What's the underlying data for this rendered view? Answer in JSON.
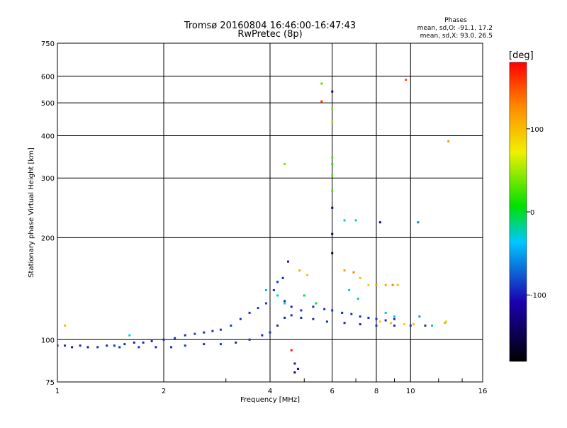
{
  "chart_data": {
    "type": "scatter",
    "title": "Tromsø 20160804 16:46:00-16:47:43",
    "subtitle": "RwPretec (8p)",
    "xlabel": "Frequency [MHz]",
    "ylabel": "Stationary phase Virtual Height [km]",
    "x_scale": "log",
    "y_scale": "log",
    "xlim": [
      1,
      16
    ],
    "ylim": [
      75,
      750
    ],
    "x_ticks": [
      1,
      2,
      4,
      6,
      8,
      10,
      16
    ],
    "y_ticks": [
      75,
      100,
      200,
      300,
      400,
      500,
      600,
      750
    ],
    "grid": true,
    "phases_label": "Phases",
    "phase_stats": [
      "mean, sd,O: -91.1, 17.2",
      "mean, sd,X:  93.0, 26.5"
    ],
    "colorbar": {
      "label": "[deg]",
      "range": [
        -180,
        180
      ],
      "ticks": [
        -100,
        0,
        100
      ]
    },
    "series": [
      {
        "values": [
          [
            1.0,
            96,
            -95
          ],
          [
            1.05,
            96,
            -90
          ],
          [
            1.1,
            95,
            -100
          ],
          [
            1.16,
            96,
            -92
          ],
          [
            1.22,
            95,
            -98
          ],
          [
            1.3,
            95,
            -90
          ],
          [
            1.38,
            96,
            -95
          ],
          [
            1.45,
            96,
            -88
          ],
          [
            1.55,
            97,
            -92
          ],
          [
            1.65,
            98,
            -96
          ],
          [
            1.75,
            98,
            -90
          ],
          [
            1.85,
            99,
            -94
          ],
          [
            2.0,
            100,
            -92
          ],
          [
            2.15,
            101,
            -88
          ],
          [
            2.3,
            103,
            -90
          ],
          [
            2.45,
            104,
            -86
          ],
          [
            2.6,
            105,
            -90
          ],
          [
            2.75,
            106,
            -92
          ],
          [
            2.9,
            107,
            -88
          ],
          [
            3.1,
            110,
            -85
          ],
          [
            3.3,
            115,
            -88
          ],
          [
            3.5,
            120,
            -90
          ],
          [
            3.7,
            124,
            -86
          ],
          [
            3.9,
            128,
            -88
          ],
          [
            4.1,
            140,
            -92
          ],
          [
            4.2,
            148,
            -90
          ],
          [
            4.35,
            152,
            -95
          ],
          [
            4.5,
            170,
            -100
          ]
        ]
      },
      {
        "values": [
          [
            1.5,
            95,
            -92
          ],
          [
            1.7,
            95,
            -90
          ],
          [
            1.9,
            95,
            -94
          ],
          [
            2.1,
            95,
            -92
          ],
          [
            2.3,
            96,
            -90
          ],
          [
            2.6,
            97,
            -92
          ],
          [
            2.9,
            97,
            -88
          ],
          [
            3.2,
            98,
            -92
          ],
          [
            3.5,
            100,
            -90
          ],
          [
            3.8,
            103,
            -94
          ],
          [
            4.0,
            105,
            -90
          ],
          [
            4.2,
            110,
            -92
          ],
          [
            4.4,
            116,
            -95
          ],
          [
            4.6,
            118,
            -92
          ],
          [
            4.9,
            116,
            -90
          ],
          [
            5.3,
            115,
            -92
          ],
          [
            5.8,
            113,
            -90
          ],
          [
            6.5,
            112,
            -92
          ],
          [
            7.2,
            111,
            -95
          ],
          [
            8.0,
            110,
            -90
          ],
          [
            9.0,
            110,
            -92
          ],
          [
            10.0,
            110,
            -88
          ],
          [
            11.0,
            110,
            -90
          ]
        ]
      },
      {
        "values": [
          [
            4.4,
            130,
            -90
          ],
          [
            4.6,
            125,
            -95
          ],
          [
            4.9,
            122,
            -90
          ],
          [
            5.3,
            125,
            -92
          ],
          [
            5.7,
            123,
            -90
          ],
          [
            6.0,
            122,
            -88
          ],
          [
            6.4,
            120,
            -92
          ],
          [
            6.8,
            119,
            -90
          ],
          [
            7.2,
            117,
            -92
          ],
          [
            7.6,
            116,
            -90
          ],
          [
            8.0,
            115,
            -88
          ],
          [
            8.5,
            114,
            -92
          ],
          [
            9.0,
            115,
            -90
          ]
        ]
      },
      {
        "values": [
          [
            4.85,
            160,
            110
          ],
          [
            5.1,
            155,
            95
          ],
          [
            6.5,
            160,
            120
          ],
          [
            6.9,
            158,
            130
          ],
          [
            7.2,
            152,
            100
          ],
          [
            7.6,
            145,
            90
          ],
          [
            8.0,
            145,
            120
          ],
          [
            8.5,
            145,
            110
          ],
          [
            8.9,
            145,
            130
          ],
          [
            9.2,
            145,
            100
          ],
          [
            8.2,
            113,
            95
          ],
          [
            8.8,
            112,
            100
          ],
          [
            9.6,
            111,
            90
          ],
          [
            10.2,
            111,
            100
          ],
          [
            12.5,
            112,
            105
          ],
          [
            12.6,
            113,
            95
          ],
          [
            9.7,
            585,
            150
          ],
          [
            12.8,
            385,
            120
          ],
          [
            5.6,
            505,
            160
          ],
          [
            1.05,
            110,
            100
          ]
        ]
      },
      {
        "values": [
          [
            6.0,
            540,
            -120
          ],
          [
            6.0,
            480,
            40
          ],
          [
            6.0,
            440,
            50
          ],
          [
            6.0,
            345,
            30
          ],
          [
            6.0,
            330,
            20
          ],
          [
            6.0,
            305,
            35
          ],
          [
            6.0,
            275,
            25
          ],
          [
            6.0,
            245,
            -140
          ],
          [
            6.0,
            205,
            -150
          ],
          [
            6.0,
            180,
            -170
          ],
          [
            5.6,
            570,
            30
          ],
          [
            4.4,
            330,
            40
          ],
          [
            6.5,
            225,
            -30
          ],
          [
            7.0,
            225,
            -20
          ],
          [
            8.2,
            222,
            -110
          ],
          [
            10.5,
            222,
            -60
          ],
          [
            4.6,
            93,
            170
          ],
          [
            4.7,
            85,
            -100
          ],
          [
            4.8,
            82,
            -110
          ],
          [
            4.7,
            80,
            -120
          ]
        ]
      },
      {
        "values": [
          [
            3.9,
            140,
            -40
          ],
          [
            4.2,
            135,
            -30
          ],
          [
            4.4,
            128,
            -20
          ],
          [
            5.0,
            135,
            -10
          ],
          [
            5.4,
            128,
            0
          ],
          [
            6.7,
            140,
            -30
          ],
          [
            7.1,
            132,
            -20
          ],
          [
            8.5,
            120,
            -40
          ],
          [
            9.0,
            117,
            -30
          ],
          [
            10.6,
            117,
            -50
          ],
          [
            11.5,
            110,
            -20
          ],
          [
            1.6,
            103,
            -30
          ]
        ]
      }
    ]
  }
}
